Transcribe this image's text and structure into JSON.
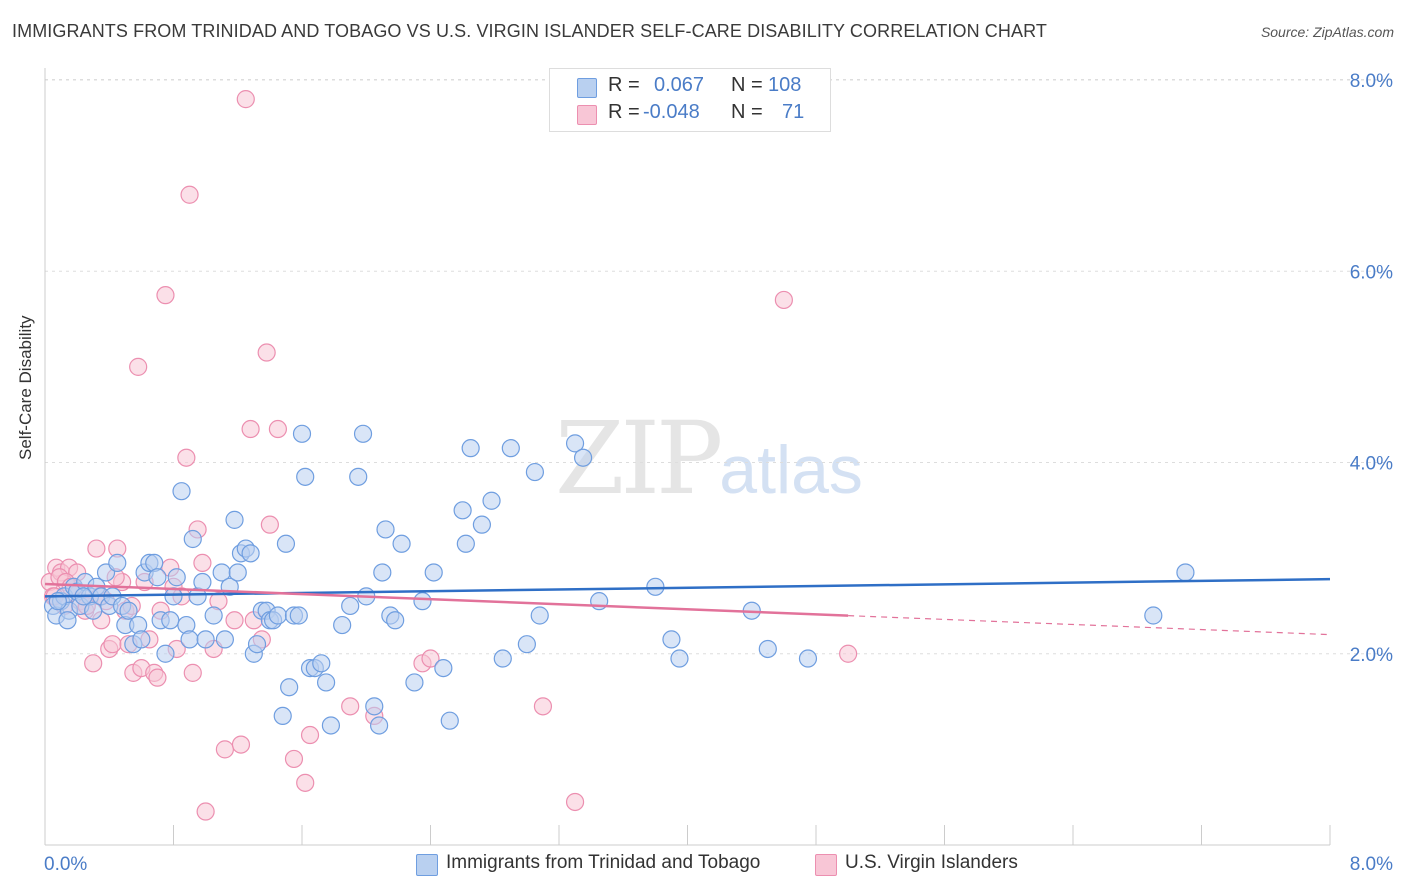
{
  "title": "IMMIGRANTS FROM TRINIDAD AND TOBAGO VS U.S. VIRGIN ISLANDER SELF-CARE DISABILITY CORRELATION CHART",
  "source": "Source: ZipAtlas.com",
  "watermark": {
    "zip": "ZIP",
    "atlas": "atlas"
  },
  "legend": {
    "row1": {
      "r_label": "R =",
      "r_value": "0.067",
      "n_label": "N =",
      "n_value": "108"
    },
    "row2": {
      "r_label": "R =",
      "r_value": "-0.048",
      "n_label": "N =",
      "n_value": "71"
    }
  },
  "colors": {
    "blue": "#6f9ee0",
    "blue_fill": "#b9d0f0",
    "blue_line": "#2f6fc6",
    "pink": "#ec8fb0",
    "pink_fill": "#f8c6d6",
    "pink_line": "#e2729a",
    "axis_text": "#4a7cc7"
  },
  "chart_data": {
    "type": "scatter",
    "title": "IMMIGRANTS FROM TRINIDAD AND TOBAGO VS U.S. VIRGIN ISLANDER SELF-CARE DISABILITY CORRELATION CHART",
    "xlabel": "",
    "ylabel": "Self-Care Disability",
    "xlim": [
      0,
      8
    ],
    "ylim": [
      0,
      8
    ],
    "x_tick_labels": [
      "0.0%",
      "8.0%"
    ],
    "y_tick_labels": [
      {
        "v": 2,
        "label": "2.0%"
      },
      {
        "v": 4,
        "label": "4.0%"
      },
      {
        "v": 6,
        "label": "6.0%"
      },
      {
        "v": 8,
        "label": "8.0%"
      }
    ],
    "series": [
      {
        "name": "Immigrants from Trinidad and Tobago",
        "color": "blue",
        "trend": {
          "x0": 0,
          "y0": 2.6,
          "x1": 8,
          "y1": 2.78,
          "dashed_from": null
        },
        "points": [
          [
            0.05,
            2.5
          ],
          [
            0.07,
            2.4
          ],
          [
            0.1,
            2.55
          ],
          [
            0.12,
            2.6
          ],
          [
            0.15,
            2.45
          ],
          [
            0.18,
            2.7
          ],
          [
            0.2,
            2.65
          ],
          [
            0.22,
            2.5
          ],
          [
            0.25,
            2.75
          ],
          [
            0.28,
            2.6
          ],
          [
            0.3,
            2.45
          ],
          [
            0.32,
            2.7
          ],
          [
            0.35,
            2.6
          ],
          [
            0.38,
            2.85
          ],
          [
            0.4,
            2.5
          ],
          [
            0.42,
            2.6
          ],
          [
            0.45,
            2.95
          ],
          [
            0.48,
            2.5
          ],
          [
            0.5,
            2.3
          ],
          [
            0.52,
            2.45
          ],
          [
            0.55,
            2.1
          ],
          [
            0.58,
            2.3
          ],
          [
            0.6,
            2.15
          ],
          [
            0.62,
            2.85
          ],
          [
            0.65,
            2.95
          ],
          [
            0.68,
            2.95
          ],
          [
            0.7,
            2.8
          ],
          [
            0.72,
            2.35
          ],
          [
            0.75,
            2.0
          ],
          [
            0.78,
            2.35
          ],
          [
            0.8,
            2.6
          ],
          [
            0.82,
            2.8
          ],
          [
            0.85,
            3.7
          ],
          [
            0.88,
            2.3
          ],
          [
            0.9,
            2.15
          ],
          [
            0.92,
            3.2
          ],
          [
            0.95,
            2.6
          ],
          [
            0.98,
            2.75
          ],
          [
            1.0,
            2.15
          ],
          [
            1.05,
            2.4
          ],
          [
            1.1,
            2.85
          ],
          [
            1.12,
            2.15
          ],
          [
            1.15,
            2.7
          ],
          [
            1.18,
            3.4
          ],
          [
            1.2,
            2.85
          ],
          [
            1.22,
            3.05
          ],
          [
            1.25,
            3.1
          ],
          [
            1.28,
            3.05
          ],
          [
            1.3,
            2.0
          ],
          [
            1.32,
            2.1
          ],
          [
            1.35,
            2.45
          ],
          [
            1.38,
            2.45
          ],
          [
            1.4,
            2.35
          ],
          [
            1.42,
            2.35
          ],
          [
            1.45,
            2.4
          ],
          [
            1.48,
            1.35
          ],
          [
            1.5,
            3.15
          ],
          [
            1.52,
            1.65
          ],
          [
            1.55,
            2.4
          ],
          [
            1.58,
            2.4
          ],
          [
            1.6,
            4.3
          ],
          [
            1.62,
            3.85
          ],
          [
            1.65,
            1.85
          ],
          [
            1.68,
            1.85
          ],
          [
            1.72,
            1.9
          ],
          [
            1.75,
            1.7
          ],
          [
            1.78,
            1.25
          ],
          [
            1.85,
            2.3
          ],
          [
            1.9,
            2.5
          ],
          [
            1.95,
            3.85
          ],
          [
            1.98,
            4.3
          ],
          [
            2.0,
            2.6
          ],
          [
            2.05,
            1.45
          ],
          [
            2.08,
            1.25
          ],
          [
            2.1,
            2.85
          ],
          [
            2.12,
            3.3
          ],
          [
            2.15,
            2.4
          ],
          [
            2.18,
            2.35
          ],
          [
            2.22,
            3.15
          ],
          [
            2.3,
            1.7
          ],
          [
            2.35,
            2.55
          ],
          [
            2.42,
            2.85
          ],
          [
            2.48,
            1.85
          ],
          [
            2.52,
            1.3
          ],
          [
            2.6,
            3.5
          ],
          [
            2.62,
            3.15
          ],
          [
            2.65,
            4.15
          ],
          [
            2.72,
            3.35
          ],
          [
            2.78,
            3.6
          ],
          [
            2.85,
            1.95
          ],
          [
            2.9,
            4.15
          ],
          [
            3.0,
            2.1
          ],
          [
            3.05,
            3.9
          ],
          [
            3.08,
            2.4
          ],
          [
            3.3,
            4.2
          ],
          [
            3.35,
            4.05
          ],
          [
            3.45,
            2.55
          ],
          [
            3.8,
            2.7
          ],
          [
            3.9,
            2.15
          ],
          [
            3.95,
            1.95
          ],
          [
            4.4,
            2.45
          ],
          [
            4.5,
            2.05
          ],
          [
            4.75,
            1.95
          ],
          [
            6.9,
            2.4
          ],
          [
            7.1,
            2.85
          ],
          [
            0.08,
            2.55
          ],
          [
            0.14,
            2.35
          ],
          [
            0.24,
            2.6
          ]
        ]
      },
      {
        "name": "U.S. Virgin Islanders",
        "color": "pink",
        "trend": {
          "x0": 0,
          "y0": 2.73,
          "x1": 8,
          "y1": 2.2,
          "dashed_from": 5.0
        },
        "points": [
          [
            0.03,
            2.75
          ],
          [
            0.05,
            2.6
          ],
          [
            0.07,
            2.9
          ],
          [
            0.1,
            2.85
          ],
          [
            0.12,
            2.5
          ],
          [
            0.15,
            2.9
          ],
          [
            0.18,
            2.7
          ],
          [
            0.2,
            2.85
          ],
          [
            0.22,
            2.55
          ],
          [
            0.25,
            2.45
          ],
          [
            0.28,
            2.6
          ],
          [
            0.3,
            1.9
          ],
          [
            0.32,
            3.1
          ],
          [
            0.35,
            2.35
          ],
          [
            0.38,
            2.55
          ],
          [
            0.4,
            2.05
          ],
          [
            0.42,
            2.1
          ],
          [
            0.45,
            3.1
          ],
          [
            0.48,
            2.75
          ],
          [
            0.5,
            2.45
          ],
          [
            0.52,
            2.1
          ],
          [
            0.55,
            1.8
          ],
          [
            0.58,
            5.0
          ],
          [
            0.6,
            1.85
          ],
          [
            0.62,
            2.75
          ],
          [
            0.65,
            2.15
          ],
          [
            0.68,
            1.8
          ],
          [
            0.7,
            1.75
          ],
          [
            0.72,
            2.45
          ],
          [
            0.75,
            5.75
          ],
          [
            0.78,
            2.9
          ],
          [
            0.8,
            2.7
          ],
          [
            0.82,
            2.05
          ],
          [
            0.85,
            2.6
          ],
          [
            0.88,
            4.05
          ],
          [
            0.9,
            6.8
          ],
          [
            0.92,
            1.8
          ],
          [
            0.95,
            3.3
          ],
          [
            0.98,
            2.95
          ],
          [
            1.0,
            0.35
          ],
          [
            1.05,
            2.05
          ],
          [
            1.08,
            2.55
          ],
          [
            1.12,
            1.0
          ],
          [
            1.18,
            2.35
          ],
          [
            1.22,
            1.05
          ],
          [
            1.25,
            7.8
          ],
          [
            1.28,
            4.35
          ],
          [
            1.3,
            2.35
          ],
          [
            1.35,
            2.15
          ],
          [
            1.38,
            5.15
          ],
          [
            1.4,
            3.35
          ],
          [
            1.45,
            4.35
          ],
          [
            1.55,
            0.9
          ],
          [
            1.62,
            0.65
          ],
          [
            1.65,
            1.15
          ],
          [
            1.9,
            1.45
          ],
          [
            2.05,
            1.35
          ],
          [
            2.35,
            1.9
          ],
          [
            2.4,
            1.95
          ],
          [
            3.1,
            1.45
          ],
          [
            3.3,
            0.45
          ],
          [
            4.6,
            5.7
          ],
          [
            5.0,
            2.0
          ],
          [
            0.06,
            2.6
          ],
          [
            0.09,
            2.8
          ],
          [
            0.13,
            2.75
          ],
          [
            0.16,
            2.7
          ],
          [
            0.26,
            2.5
          ],
          [
            0.34,
            2.6
          ],
          [
            0.44,
            2.8
          ],
          [
            0.54,
            2.5
          ]
        ]
      }
    ]
  },
  "bottom_legend": {
    "series1": "Immigrants from Trinidad and Tobago",
    "series2": "U.S. Virgin Islanders"
  }
}
